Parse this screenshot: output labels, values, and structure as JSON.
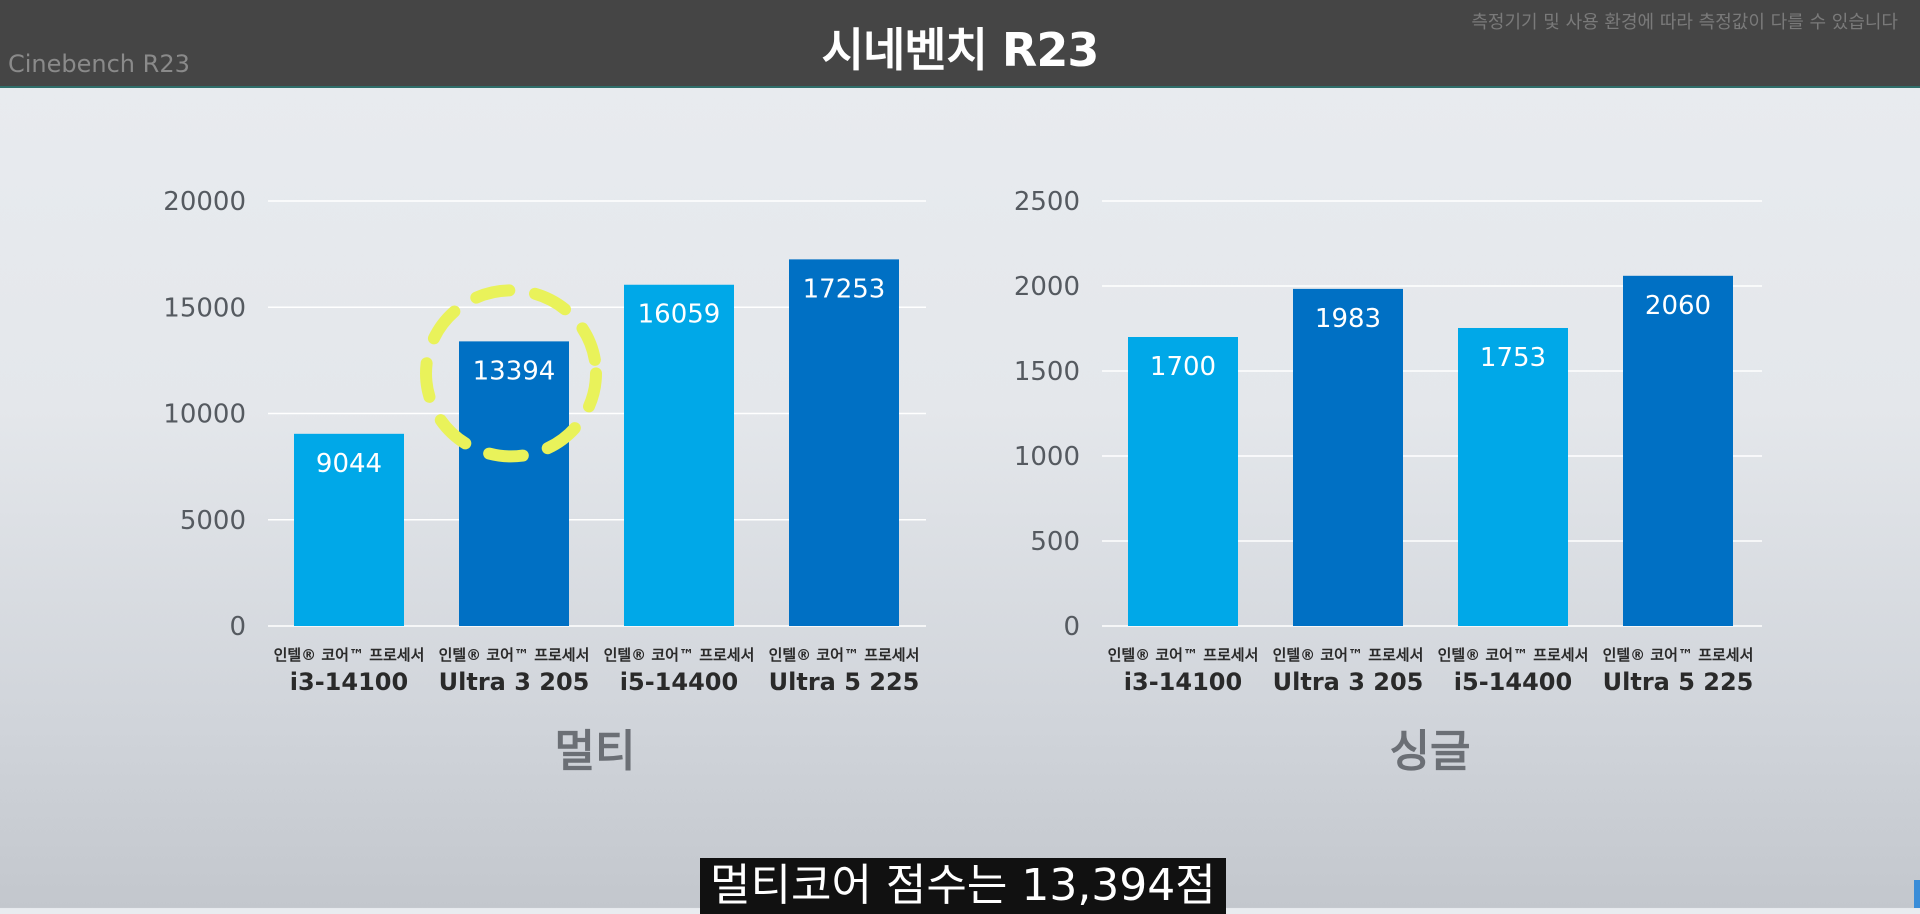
{
  "header": {
    "title": "시네벤치 R23",
    "left_label": "Cinebench R23",
    "notice": "측정기기 및 사용 환경에 따라 측정값이 다를 수 있습니다"
  },
  "caption": "멀티코어 점수는 13,394점",
  "colors": {
    "light_bar": "#00a8e8",
    "dark_bar": "#0070c4",
    "highlight": "#e9f25a"
  },
  "chart_data": [
    {
      "type": "bar",
      "title": "멀티",
      "categories": [
        "i3-14100",
        "Ultra 3 205",
        "i5-14400",
        "Ultra 5 225"
      ],
      "category_prefix": "인텔® 코어™ 프로세서",
      "values": [
        9044,
        13394,
        16059,
        17253
      ],
      "bar_colors": [
        "light",
        "dark",
        "light",
        "dark"
      ],
      "yticks": [
        "20000",
        "15000",
        "10000",
        "5000",
        "0"
      ],
      "ylim": [
        0,
        20000
      ],
      "highlighted_category": "Ultra 3 205",
      "grid": true
    },
    {
      "type": "bar",
      "title": "싱글",
      "categories": [
        "i3-14100",
        "Ultra 3 205",
        "i5-14400",
        "Ultra 5 225"
      ],
      "category_prefix": "인텔® 코어™ 프로세서",
      "values": [
        1700,
        1983,
        1753,
        2060
      ],
      "bar_colors": [
        "light",
        "dark",
        "light",
        "dark"
      ],
      "yticks": [
        "2500",
        "2000",
        "1500",
        "1000",
        "500",
        "0"
      ],
      "ylim": [
        0,
        2500
      ],
      "grid": true
    }
  ]
}
